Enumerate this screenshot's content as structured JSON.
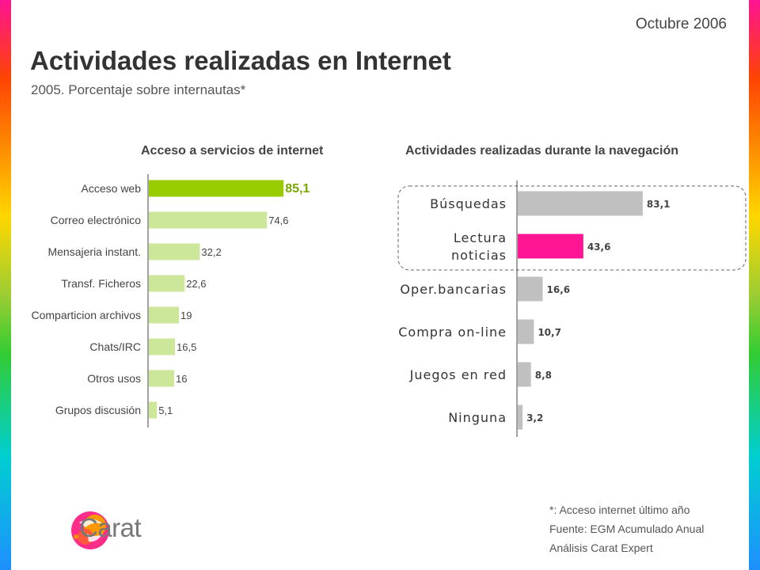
{
  "header": {
    "date": "Octubre 2006",
    "title": "Actividades realizadas en Internet",
    "subtitle": "2005. Porcentaje sobre internautas*"
  },
  "chart_data": [
    {
      "type": "bar",
      "orientation": "horizontal",
      "title": "Acceso a servicios de internet",
      "categories": [
        "Acceso web",
        "Correo electrónico",
        "Mensajeria instant.",
        "Transf. Ficheros",
        "Comparticion archivos",
        "Chats/IRC",
        "Otros usos",
        "Grupos discusión"
      ],
      "values": [
        85.1,
        74.6,
        32.2,
        22.6,
        19,
        16.5,
        16,
        5.1
      ],
      "value_labels": [
        "85,1",
        "74,6",
        "32,2",
        "22,6",
        "19",
        "16,5",
        "16",
        "5,1"
      ],
      "highlight_index": 0,
      "colors": {
        "bar": "#cce69a",
        "highlight": "#99cc00",
        "highlight_label": "#7aa800"
      }
    },
    {
      "type": "bar",
      "orientation": "horizontal",
      "title": "Actividades realizadas durante la navegación",
      "categories": [
        [
          "Búsquedas"
        ],
        [
          "Lectura",
          "noticias"
        ],
        [
          "Oper.bancarias"
        ],
        [
          "Compra on-line"
        ],
        [
          "Juegos en red"
        ],
        [
          "Ninguna"
        ]
      ],
      "values": [
        83.1,
        43.6,
        16.6,
        10.7,
        8.8,
        3.2
      ],
      "value_labels": [
        "83,1",
        "43,6",
        "16,6",
        "10,7",
        "8,8",
        "3,2"
      ],
      "highlight_index": 1,
      "highlight_group": [
        0,
        1
      ],
      "colors": {
        "bar": "#c0c0c0",
        "highlight": "#ff1493"
      }
    }
  ],
  "footnotes": [
    "*: Acceso internet último año",
    "Fuente: EGM Acumulado Anual",
    "Análisis Carat Expert"
  ],
  "logo": {
    "text": "Carat"
  }
}
